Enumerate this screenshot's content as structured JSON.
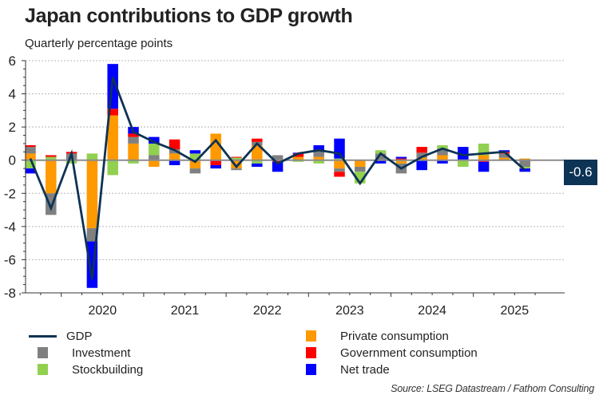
{
  "chart_data": {
    "type": "bar",
    "stacked": true,
    "title": "Japan contributions to GDP growth",
    "subtitle": "Quarterly percentage points",
    "xlabel": "",
    "ylabel": "",
    "ylim": [
      -8,
      6
    ],
    "yticks": [
      6,
      4,
      2,
      0,
      -2,
      -4,
      -6,
      -8
    ],
    "grid": true,
    "x": [
      "2019Q3",
      "2019Q4",
      "2020Q1",
      "2020Q2",
      "2020Q3",
      "2020Q4",
      "2021Q1",
      "2021Q2",
      "2021Q3",
      "2021Q4",
      "2022Q1",
      "2022Q2",
      "2022Q3",
      "2022Q4",
      "2023Q1",
      "2023Q2",
      "2023Q3",
      "2023Q4",
      "2024Q1",
      "2024Q2",
      "2024Q3",
      "2024Q4",
      "2025Q1",
      "2025Q2",
      "2025Q3"
    ],
    "xtick_labels": [
      {
        "label": "2020",
        "year_start_index": 2
      },
      {
        "label": "2021",
        "year_start_index": 6
      },
      {
        "label": "2022",
        "year_start_index": 10
      },
      {
        "label": "2023",
        "year_start_index": 14
      },
      {
        "label": "2024",
        "year_start_index": 18
      },
      {
        "label": "2025",
        "year_start_index": 22
      }
    ],
    "series": [
      {
        "name": "Private consumption",
        "kind": "bar",
        "color": "#ff9900",
        "values": [
          0.4,
          -2.0,
          0.0,
          -4.1,
          2.7,
          1.0,
          -0.4,
          0.4,
          -0.5,
          1.6,
          -0.5,
          0.9,
          0.0,
          0.2,
          0.2,
          -0.5,
          -0.4,
          0.0,
          -0.2,
          0.15,
          0.3,
          0.0,
          0.3,
          0.15,
          0.1
        ]
      },
      {
        "name": "Investment",
        "kind": "bar",
        "color": "#808080",
        "values": [
          0.4,
          -1.3,
          0.4,
          -0.8,
          0.0,
          0.4,
          0.3,
          0.25,
          -0.3,
          0.0,
          -0.1,
          0.2,
          0.3,
          0.0,
          0.4,
          -0.2,
          -0.3,
          0.4,
          -0.6,
          0.3,
          0.4,
          0.0,
          0.0,
          0.25,
          -0.4
        ]
      },
      {
        "name": "Stockbuilding",
        "kind": "bar",
        "color": "#92d050",
        "values": [
          -0.5,
          0.2,
          -0.2,
          0.4,
          -0.9,
          -0.2,
          0.7,
          0.0,
          0.4,
          0.0,
          0.15,
          -0.2,
          0.0,
          -0.1,
          -0.2,
          0.1,
          -0.7,
          0.2,
          0.0,
          0.0,
          0.2,
          -0.4,
          0.7,
          0.0,
          -0.1
        ]
      },
      {
        "name": "Government consumption",
        "kind": "bar",
        "color": "#ff0000",
        "values": [
          0.1,
          0.1,
          0.1,
          0.0,
          0.4,
          0.2,
          0.0,
          0.6,
          0.0,
          -0.3,
          0.05,
          0.2,
          -0.1,
          0.2,
          0.0,
          -0.3,
          0.0,
          0.0,
          0.1,
          0.35,
          0.0,
          0.0,
          -0.1,
          0.1,
          0.0
        ]
      },
      {
        "name": "Net trade",
        "kind": "bar",
        "color": "#0000ff",
        "values": [
          -0.3,
          0.0,
          0.0,
          -2.8,
          2.7,
          0.4,
          0.4,
          -0.3,
          0.2,
          -0.2,
          0.0,
          -0.2,
          -0.6,
          0.05,
          0.3,
          1.2,
          0.0,
          -0.2,
          0.1,
          -0.6,
          -0.2,
          0.8,
          -0.6,
          0.1,
          -0.2
        ]
      },
      {
        "name": "GDP",
        "kind": "line",
        "color": "#0d3355",
        "values": [
          0.1,
          -2.9,
          0.4,
          -7.2,
          5.0,
          1.7,
          1.1,
          0.6,
          -0.1,
          1.2,
          -0.4,
          1.0,
          -0.2,
          0.4,
          0.6,
          0.4,
          -1.4,
          0.4,
          -0.5,
          0.2,
          0.7,
          0.3,
          0.4,
          0.5,
          -0.6
        ]
      }
    ],
    "legend": {
      "placement": "bottom",
      "entries": [
        "GDP",
        "Private consumption",
        "Investment",
        "Government consumption",
        "Stockbuilding",
        "Net trade"
      ]
    },
    "end_label": "-0.6",
    "source": "Source: LSEG Datastream / Fathom Consulting"
  }
}
